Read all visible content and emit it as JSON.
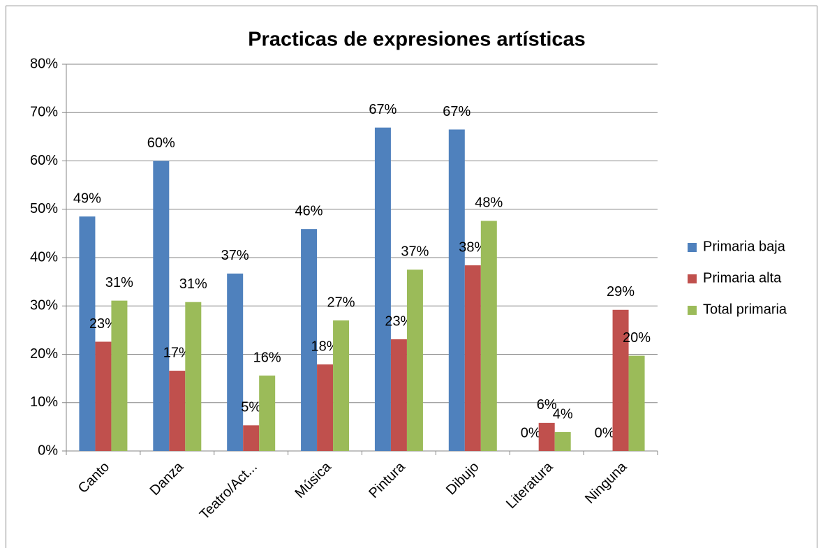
{
  "chart_data": {
    "type": "bar",
    "title": "Practicas de expresiones artísticas",
    "categories": [
      "Canto",
      "Danza",
      "Teatro/Act...",
      "Música",
      "Pintura",
      "Dibujo",
      "Literatura",
      "Ninguna"
    ],
    "series": [
      {
        "name": "Primaria baja",
        "color": "#4f81bd",
        "values": [
          48.5,
          60.0,
          36.7,
          45.9,
          66.9,
          66.5,
          0,
          0
        ],
        "value_labels": [
          "49%",
          "60%",
          "37%",
          "46%",
          "67%",
          "67%",
          "0%",
          "0%"
        ]
      },
      {
        "name": "Primaria alta",
        "color": "#c0504d",
        "values": [
          22.6,
          16.6,
          5.3,
          17.9,
          23.1,
          38.4,
          5.8,
          29.2
        ],
        "value_labels": [
          "23%",
          "17%",
          "5%",
          "18%",
          "23%",
          "38%",
          "6%",
          "29%"
        ]
      },
      {
        "name": "Total primaria",
        "color": "#9bbb59",
        "values": [
          31.1,
          30.8,
          15.6,
          27.0,
          37.5,
          47.6,
          3.9,
          19.7
        ],
        "value_labels": [
          "31%",
          "31%",
          "16%",
          "27%",
          "37%",
          "48%",
          "4%",
          "20%"
        ]
      }
    ],
    "ylim": [
      0,
      80
    ],
    "yticks": [
      {
        "value": 0,
        "label": "0%"
      },
      {
        "value": 10,
        "label": "10%"
      },
      {
        "value": 20,
        "label": "20%"
      },
      {
        "value": 30,
        "label": "30%"
      },
      {
        "value": 40,
        "label": "40%"
      },
      {
        "value": 50,
        "label": "50%"
      },
      {
        "value": 60,
        "label": "60%"
      },
      {
        "value": 70,
        "label": "70%"
      },
      {
        "value": 80,
        "label": "80%"
      }
    ],
    "grid": true,
    "legend": "right"
  }
}
